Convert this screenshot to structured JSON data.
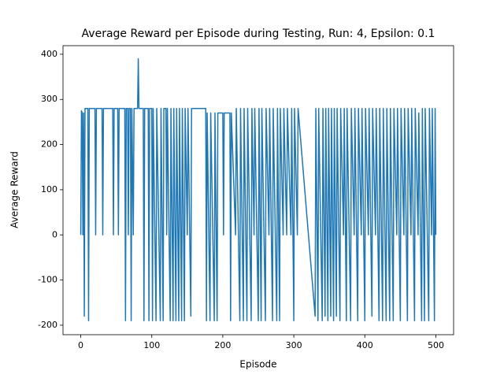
{
  "chart_data": {
    "type": "line",
    "title": "Average Reward per Episode during Testing, Run: 4, Epsilon: 0.1",
    "x_label": "Episode",
    "y_label": "Average Reward",
    "color": "#1f77b4",
    "xlim": [
      -25,
      525
    ],
    "ylim": [
      -221,
      419
    ],
    "xticks": [
      0,
      100,
      200,
      300,
      400,
      500
    ],
    "yticks": [
      -200,
      -100,
      0,
      100,
      200,
      300,
      400
    ],
    "x": [
      0,
      1,
      2,
      3,
      4,
      5,
      6,
      10,
      11,
      12,
      20,
      21,
      22,
      30,
      31,
      32,
      45,
      46,
      47,
      52,
      53,
      54,
      62,
      63,
      64,
      66,
      67,
      68,
      70,
      71,
      72,
      74,
      75,
      80,
      81,
      82,
      88,
      89,
      90,
      95,
      96,
      97,
      100,
      101,
      102,
      106,
      107,
      112,
      113,
      116,
      117,
      120,
      121,
      122,
      126,
      127,
      130,
      131,
      134,
      135,
      138,
      139,
      142,
      143,
      146,
      147,
      150,
      151,
      155,
      156,
      176,
      177,
      178,
      182,
      183,
      188,
      189,
      192,
      193,
      200,
      201,
      202,
      210,
      211,
      212,
      218,
      219,
      224,
      225,
      229,
      230,
      234,
      235,
      240,
      241,
      244,
      245,
      250,
      251,
      254,
      255,
      260,
      261,
      265,
      266,
      270,
      271,
      276,
      277,
      280,
      281,
      285,
      286,
      290,
      291,
      296,
      297,
      300,
      301,
      305,
      306,
      330,
      331,
      334,
      335,
      340,
      341,
      344,
      345,
      348,
      349,
      352,
      353,
      356,
      357,
      360,
      361,
      365,
      366,
      370,
      371,
      374,
      375,
      380,
      381,
      385,
      386,
      390,
      391,
      395,
      396,
      400,
      401,
      405,
      406,
      410,
      411,
      415,
      416,
      420,
      421,
      425,
      426,
      430,
      431,
      435,
      436,
      440,
      441,
      445,
      446,
      450,
      451,
      455,
      456,
      460,
      461,
      465,
      466,
      470,
      471,
      475,
      476,
      480,
      481,
      484,
      485,
      490,
      491,
      494,
      495,
      498,
      499,
      500
    ],
    "values": [
      0,
      275,
      270,
      0,
      270,
      -180,
      280,
      280,
      -190,
      280,
      280,
      0,
      280,
      280,
      0,
      280,
      280,
      0,
      280,
      280,
      0,
      280,
      280,
      -190,
      280,
      280,
      0,
      280,
      280,
      -190,
      280,
      0,
      280,
      280,
      390,
      280,
      280,
      -190,
      280,
      280,
      -190,
      280,
      280,
      -190,
      280,
      -190,
      280,
      -190,
      280,
      -190,
      280,
      280,
      0,
      280,
      -190,
      280,
      -190,
      280,
      -190,
      280,
      -190,
      280,
      -190,
      280,
      -190,
      280,
      0,
      280,
      -180,
      280,
      280,
      -190,
      270,
      -190,
      270,
      -190,
      270,
      -190,
      270,
      270,
      0,
      270,
      270,
      -190,
      270,
      0,
      280,
      -190,
      280,
      -190,
      280,
      -190,
      280,
      -190,
      280,
      0,
      280,
      -190,
      280,
      -190,
      280,
      -190,
      280,
      0,
      280,
      -190,
      280,
      -190,
      280,
      -190,
      280,
      0,
      280,
      0,
      280,
      0,
      280,
      -190,
      280,
      0,
      280,
      -180,
      280,
      -190,
      280,
      -190,
      280,
      -180,
      280,
      -190,
      280,
      -180,
      280,
      -190,
      280,
      -180,
      280,
      -190,
      280,
      0,
      280,
      -190,
      280,
      -190,
      280,
      0,
      280,
      -190,
      280,
      0,
      280,
      -190,
      280,
      0,
      280,
      -180,
      280,
      0,
      280,
      -190,
      280,
      -190,
      280,
      -190,
      280,
      -190,
      280,
      -190,
      280,
      0,
      280,
      -190,
      280,
      0,
      280,
      -190,
      280,
      0,
      280,
      -190,
      280,
      0,
      270,
      -190,
      280,
      -190,
      280,
      -190,
      280,
      0,
      280,
      -190,
      280,
      0
    ]
  }
}
